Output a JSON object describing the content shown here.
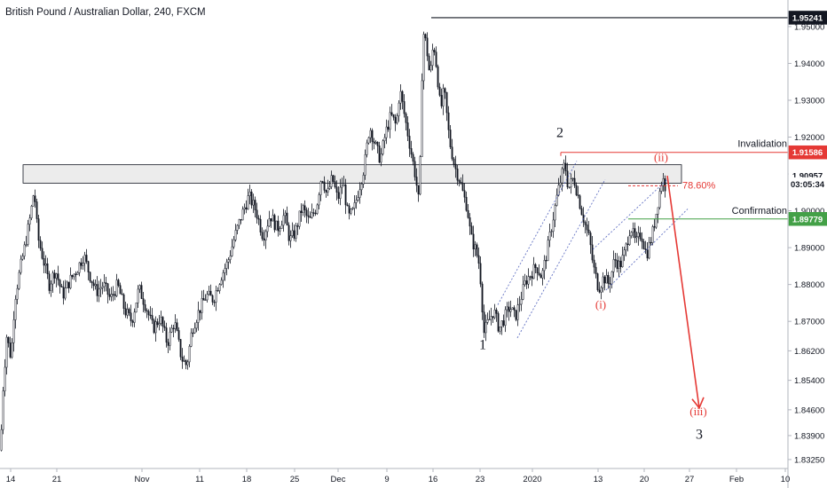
{
  "title": "British Pound / Australian Dollar, 240, FXCM",
  "colors": {
    "candle": "#131722",
    "zone_fill": "#e6e6e6",
    "invalidation": "#e53935",
    "confirmation": "#43a047",
    "channel": "#3f51b5",
    "fib": "#e53935",
    "arrow": "#e53935",
    "top_line": "#131722"
  },
  "chart_data": {
    "type": "candlestick",
    "y_ticks": [
      "1.95000",
      "1.94000",
      "1.93000",
      "1.92000",
      "1.91000",
      "1.90000",
      "1.89000",
      "1.88000",
      "1.87000",
      "1.86200",
      "1.85400",
      "1.84600",
      "1.83900",
      "1.83250"
    ],
    "x_ticks": [
      "14",
      "21",
      "Nov",
      "11",
      "18",
      "25",
      "Dec",
      "9",
      "16",
      "23",
      "2020",
      "13",
      "20",
      "27",
      "Feb",
      "10"
    ],
    "ylim": [
      1.832,
      1.956
    ],
    "price_path": [
      [
        0,
        1.835
      ],
      [
        3,
        1.852
      ],
      [
        7,
        1.866
      ],
      [
        12,
        1.86
      ],
      [
        16,
        1.876
      ],
      [
        22,
        1.884
      ],
      [
        28,
        1.891
      ],
      [
        34,
        1.899
      ],
      [
        38,
        1.906
      ],
      [
        42,
        1.893
      ],
      [
        48,
        1.887
      ],
      [
        55,
        1.88
      ],
      [
        62,
        1.884
      ],
      [
        70,
        1.877
      ],
      [
        78,
        1.881
      ],
      [
        86,
        1.884
      ],
      [
        94,
        1.888
      ],
      [
        100,
        1.883
      ],
      [
        108,
        1.878
      ],
      [
        116,
        1.88
      ],
      [
        124,
        1.876
      ],
      [
        132,
        1.88
      ],
      [
        140,
        1.873
      ],
      [
        148,
        1.87
      ],
      [
        156,
        1.879
      ],
      [
        164,
        1.874
      ],
      [
        172,
        1.868
      ],
      [
        180,
        1.871
      ],
      [
        188,
        1.864
      ],
      [
        196,
        1.87
      ],
      [
        204,
        1.86
      ],
      [
        210,
        1.858
      ],
      [
        216,
        1.868
      ],
      [
        224,
        1.873
      ],
      [
        232,
        1.877
      ],
      [
        240,
        1.876
      ],
      [
        248,
        1.882
      ],
      [
        256,
        1.886
      ],
      [
        264,
        1.893
      ],
      [
        272,
        1.899
      ],
      [
        280,
        1.904
      ],
      [
        288,
        1.9
      ],
      [
        296,
        1.893
      ],
      [
        304,
        1.899
      ],
      [
        312,
        1.895
      ],
      [
        320,
        1.899
      ],
      [
        326,
        1.892
      ],
      [
        332,
        1.894
      ],
      [
        340,
        1.901
      ],
      [
        348,
        1.897
      ],
      [
        356,
        1.901
      ],
      [
        362,
        1.91
      ],
      [
        368,
        1.904
      ],
      [
        374,
        1.909
      ],
      [
        380,
        1.903
      ],
      [
        386,
        1.908
      ],
      [
        392,
        1.898
      ],
      [
        398,
        1.9
      ],
      [
        404,
        1.906
      ],
      [
        410,
        1.912
      ],
      [
        416,
        1.923
      ],
      [
        422,
        1.918
      ],
      [
        428,
        1.914
      ],
      [
        434,
        1.921
      ],
      [
        440,
        1.926
      ],
      [
        446,
        1.923
      ],
      [
        450,
        1.933
      ],
      [
        456,
        1.925
      ],
      [
        462,
        1.917
      ],
      [
        468,
        1.909
      ],
      [
        472,
        1.901
      ],
      [
        476,
        1.949
      ],
      [
        480,
        1.945
      ],
      [
        484,
        1.936
      ],
      [
        488,
        1.946
      ],
      [
        492,
        1.938
      ],
      [
        496,
        1.927
      ],
      [
        500,
        1.933
      ],
      [
        506,
        1.919
      ],
      [
        512,
        1.912
      ],
      [
        518,
        1.908
      ],
      [
        522,
        1.904
      ],
      [
        526,
        1.901
      ],
      [
        530,
        1.893
      ],
      [
        536,
        1.889
      ],
      [
        540,
        1.885
      ],
      [
        545,
        1.867
      ],
      [
        550,
        1.87
      ],
      [
        556,
        1.873
      ],
      [
        562,
        1.868
      ],
      [
        568,
        1.871
      ],
      [
        574,
        1.874
      ],
      [
        580,
        1.871
      ],
      [
        586,
        1.876
      ],
      [
        592,
        1.881
      ],
      [
        598,
        1.883
      ],
      [
        604,
        1.885
      ],
      [
        610,
        1.882
      ],
      [
        616,
        1.889
      ],
      [
        622,
        1.897
      ],
      [
        628,
        1.905
      ],
      [
        632,
        1.909
      ],
      [
        636,
        1.913
      ],
      [
        640,
        1.906
      ],
      [
        646,
        1.909
      ],
      [
        652,
        1.903
      ],
      [
        658,
        1.897
      ],
      [
        664,
        1.892
      ],
      [
        668,
        1.885
      ],
      [
        674,
        1.879
      ],
      [
        680,
        1.882
      ],
      [
        686,
        1.88
      ],
      [
        692,
        1.887
      ],
      [
        698,
        1.885
      ],
      [
        704,
        1.889
      ],
      [
        710,
        1.896
      ],
      [
        716,
        1.891
      ],
      [
        722,
        1.894
      ],
      [
        728,
        1.888
      ],
      [
        734,
        1.893
      ],
      [
        738,
        1.898
      ],
      [
        742,
        1.904
      ],
      [
        746,
        1.909
      ],
      [
        750,
        1.906
      ]
    ]
  },
  "price_tags": [
    {
      "label": "1.95241",
      "value": 1.9524,
      "style": "dark"
    },
    {
      "label": "1.91586",
      "value": 1.91586,
      "style": "red"
    },
    {
      "label": "1.90957",
      "value": 1.90957,
      "style": "white"
    },
    {
      "label": "03:05:34",
      "value": 1.9072,
      "style": "white"
    },
    {
      "label": "1.89779",
      "value": 1.89779,
      "style": "green"
    }
  ],
  "annotations": {
    "invalidation": "Invalidation",
    "confirmation": "Confirmation",
    "fib": "78.60%",
    "wave_1": "1",
    "wave_2": "2",
    "wave_3": "3",
    "wave_i": "(i)",
    "wave_ii": "(ii)",
    "wave_iii": "(iii)"
  },
  "levels": {
    "top_line": 1.9524,
    "zone_top": 1.9125,
    "zone_bottom": 1.9075,
    "invalidation": 1.91586,
    "confirmation": 1.89779,
    "fib": 1.9068,
    "arrow_from": 1.9095,
    "arrow_to": 1.8465
  }
}
